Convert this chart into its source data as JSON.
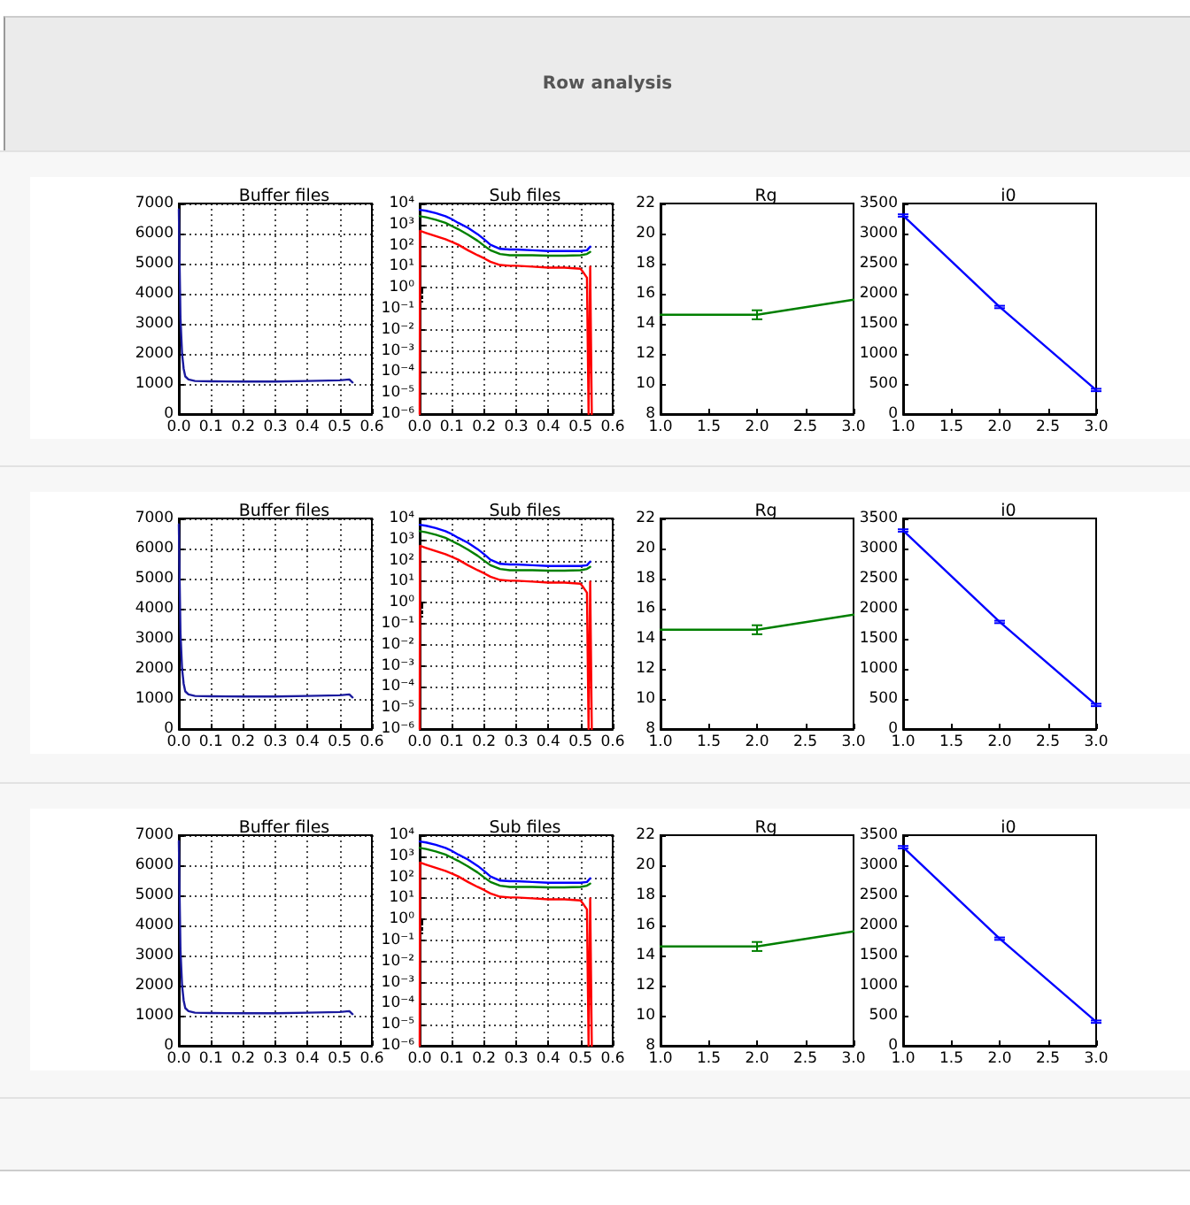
{
  "chart_data": [
    {
      "type": "line",
      "title": "Buffer files",
      "annotations": [
        "Row analysis"
      ],
      "x": [
        0,
        0.002,
        0.005,
        0.01,
        0.015,
        0.02,
        0.03,
        0.05,
        0.1,
        0.2,
        0.3,
        0.4,
        0.5,
        0.53,
        0.54
      ],
      "series": [
        {
          "color": "#1a1a9e",
          "values": [
            6800,
            5200,
            3200,
            2000,
            1500,
            1250,
            1150,
            1100,
            1090,
            1080,
            1080,
            1100,
            1120,
            1150,
            1050
          ]
        }
      ],
      "xlim": [
        0,
        0.6
      ],
      "xticks": [
        {
          "value": 0,
          "label": "0.0"
        },
        0.1,
        0.2,
        0.3,
        0.4,
        0.5,
        0.6
      ],
      "ylim": [
        0,
        7000
      ],
      "yticks": [
        0,
        1000,
        2000,
        3000,
        4000,
        5000,
        6000,
        7000
      ],
      "grid": true
    },
    {
      "type": "line",
      "title": "Sub files",
      "log": "y",
      "series": [
        {
          "color": "#0000ff",
          "x": [
            0,
            0.02,
            0.05,
            0.08,
            0.1,
            0.12,
            0.15,
            0.18,
            0.2,
            0.22,
            0.25,
            0.28,
            0.3,
            0.35,
            0.4,
            0.45,
            0.5,
            0.52,
            0.53
          ],
          "values": [
            5000,
            4500,
            3500,
            2500,
            1800,
            1200,
            700,
            350,
            200,
            110,
            70,
            65,
            65,
            60,
            55,
            55,
            55,
            60,
            90
          ]
        },
        {
          "color": "#008000",
          "x": [
            0,
            0.02,
            0.05,
            0.08,
            0.1,
            0.12,
            0.15,
            0.18,
            0.2,
            0.22,
            0.25,
            0.28,
            0.3,
            0.35,
            0.4,
            0.45,
            0.5,
            0.52,
            0.53
          ],
          "values": [
            2500,
            2200,
            1700,
            1200,
            850,
            600,
            330,
            170,
            100,
            60,
            40,
            35,
            35,
            35,
            33,
            33,
            35,
            40,
            50
          ]
        },
        {
          "color": "#ff0000",
          "x": [
            0,
            0.001,
            0.02,
            0.05,
            0.08,
            0.1,
            0.12,
            0.15,
            0.18,
            0.2,
            0.22,
            0.25,
            0.28,
            0.3,
            0.35,
            0.4,
            0.45,
            0.5,
            0.51,
            0.52,
            0.525,
            0.53,
            0.535
          ],
          "values": [
            1e-06,
            500,
            400,
            280,
            200,
            150,
            110,
            60,
            35,
            25,
            17,
            12,
            11,
            11,
            10,
            9,
            9,
            8,
            5,
            3,
            1e-06,
            10,
            1e-06
          ]
        }
      ],
      "xlim": [
        0,
        0.6
      ],
      "xticks": [
        {
          "value": 0,
          "label": "0.0"
        },
        0.1,
        0.2,
        0.3,
        0.4,
        0.5,
        0.6
      ],
      "ylim": [
        1e-06,
        10000
      ],
      "yticks": [
        {
          "value": 1e-06,
          "label": "10⁻⁶"
        },
        {
          "value": 1e-05,
          "label": "10⁻⁵"
        },
        {
          "value": 0.0001,
          "label": "10⁻⁴"
        },
        {
          "value": 0.001,
          "label": "10⁻³"
        },
        {
          "value": 0.01,
          "label": "10⁻²"
        },
        {
          "value": 0.1,
          "label": "10⁻¹"
        },
        {
          "value": 1,
          "label": "10⁰"
        },
        {
          "value": 10,
          "label": "10¹"
        },
        {
          "value": 100,
          "label": "10²"
        },
        {
          "value": 1000,
          "label": "10³"
        },
        {
          "value": 10000,
          "label": "10⁴"
        }
      ],
      "grid": true
    },
    {
      "type": "line",
      "title": "Rg",
      "x": [
        1,
        2,
        3
      ],
      "series": [
        {
          "color": "#007f00",
          "values": [
            14.6,
            14.6,
            15.6
          ],
          "errors": [
            null,
            0.3,
            null
          ]
        }
      ],
      "xlim": [
        1,
        3
      ],
      "xticks": [
        {
          "value": 1,
          "label": "1.0"
        },
        1.5,
        {
          "value": 2,
          "label": "2.0"
        },
        2.5,
        {
          "value": 3,
          "label": "3.0"
        }
      ],
      "ylim": [
        8,
        22
      ],
      "yticks": [
        8,
        10,
        12,
        14,
        16,
        18,
        20,
        22
      ]
    },
    {
      "type": "line",
      "title": "i0",
      "x": [
        1,
        2,
        3
      ],
      "series": [
        {
          "color": "#0000ff",
          "values": [
            3300,
            1780,
            400
          ],
          "errors": [
            20,
            20,
            20
          ]
        }
      ],
      "xlim": [
        1,
        3
      ],
      "xticks": [
        {
          "value": 1,
          "label": "1.0"
        },
        1.5,
        {
          "value": 2,
          "label": "2.0"
        },
        2.5,
        {
          "value": 3,
          "label": "3.0"
        }
      ],
      "ylim": [
        0,
        3500
      ],
      "yticks": [
        0,
        500,
        1000,
        1500,
        2000,
        2500,
        3000,
        3500
      ]
    },
    {
      "type": "line",
      "title": "Buffer files",
      "x": [
        0,
        0.002,
        0.005,
        0.01,
        0.015,
        0.02,
        0.03,
        0.05,
        0.1,
        0.2,
        0.3,
        0.4,
        0.5,
        0.53,
        0.54
      ],
      "series": [
        {
          "color": "#1a1a9e",
          "values": [
            6800,
            5200,
            3200,
            2000,
            1500,
            1250,
            1150,
            1100,
            1090,
            1080,
            1080,
            1100,
            1120,
            1150,
            1050
          ]
        }
      ],
      "xlim": [
        0,
        0.6
      ],
      "xticks": [
        {
          "value": 0,
          "label": "0.0"
        },
        0.1,
        0.2,
        0.3,
        0.4,
        0.5,
        0.6
      ],
      "ylim": [
        0,
        7000
      ],
      "yticks": [
        0,
        1000,
        2000,
        3000,
        4000,
        5000,
        6000,
        7000
      ],
      "grid": true
    },
    {
      "type": "line",
      "title": "Sub files",
      "log": "y",
      "series": [
        {
          "color": "#0000ff",
          "x": [
            0,
            0.02,
            0.05,
            0.08,
            0.1,
            0.12,
            0.15,
            0.18,
            0.2,
            0.22,
            0.25,
            0.28,
            0.3,
            0.35,
            0.4,
            0.45,
            0.5,
            0.52,
            0.53
          ],
          "values": [
            5000,
            4500,
            3500,
            2500,
            1800,
            1200,
            700,
            350,
            200,
            110,
            70,
            65,
            65,
            60,
            55,
            55,
            55,
            60,
            90
          ]
        },
        {
          "color": "#008000",
          "x": [
            0,
            0.02,
            0.05,
            0.08,
            0.1,
            0.12,
            0.15,
            0.18,
            0.2,
            0.22,
            0.25,
            0.28,
            0.3,
            0.35,
            0.4,
            0.45,
            0.5,
            0.52,
            0.53
          ],
          "values": [
            2500,
            2200,
            1700,
            1200,
            850,
            600,
            330,
            170,
            100,
            60,
            40,
            35,
            35,
            35,
            33,
            33,
            35,
            40,
            50
          ]
        },
        {
          "color": "#ff0000",
          "x": [
            0,
            0.001,
            0.02,
            0.05,
            0.08,
            0.1,
            0.12,
            0.15,
            0.18,
            0.2,
            0.22,
            0.25,
            0.28,
            0.3,
            0.35,
            0.4,
            0.45,
            0.5,
            0.51,
            0.52,
            0.525,
            0.53,
            0.535
          ],
          "values": [
            1e-06,
            500,
            400,
            280,
            200,
            150,
            110,
            60,
            35,
            25,
            17,
            12,
            11,
            11,
            10,
            9,
            9,
            8,
            5,
            3,
            1e-06,
            10,
            1e-06
          ]
        }
      ],
      "xlim": [
        0,
        0.6
      ],
      "xticks": [
        {
          "value": 0,
          "label": "0.0"
        },
        0.1,
        0.2,
        0.3,
        0.4,
        0.5,
        0.6
      ],
      "ylim": [
        1e-06,
        10000
      ],
      "yticks": [
        {
          "value": 1e-06,
          "label": "10⁻⁶"
        },
        {
          "value": 1e-05,
          "label": "10⁻⁵"
        },
        {
          "value": 0.0001,
          "label": "10⁻⁴"
        },
        {
          "value": 0.001,
          "label": "10⁻³"
        },
        {
          "value": 0.01,
          "label": "10⁻²"
        },
        {
          "value": 0.1,
          "label": "10⁻¹"
        },
        {
          "value": 1,
          "label": "10⁰"
        },
        {
          "value": 10,
          "label": "10¹"
        },
        {
          "value": 100,
          "label": "10²"
        },
        {
          "value": 1000,
          "label": "10³"
        },
        {
          "value": 10000,
          "label": "10⁴"
        }
      ],
      "grid": true
    },
    {
      "type": "line",
      "title": "Rg",
      "x": [
        1,
        2,
        3
      ],
      "series": [
        {
          "color": "#007f00",
          "values": [
            14.6,
            14.6,
            15.6
          ],
          "errors": [
            null,
            0.3,
            null
          ]
        }
      ],
      "xlim": [
        1,
        3
      ],
      "xticks": [
        {
          "value": 1,
          "label": "1.0"
        },
        1.5,
        {
          "value": 2,
          "label": "2.0"
        },
        2.5,
        {
          "value": 3,
          "label": "3.0"
        }
      ],
      "ylim": [
        8,
        22
      ],
      "yticks": [
        8,
        10,
        12,
        14,
        16,
        18,
        20,
        22
      ]
    },
    {
      "type": "line",
      "title": "i0",
      "x": [
        1,
        2,
        3
      ],
      "series": [
        {
          "color": "#0000ff",
          "values": [
            3300,
            1780,
            400
          ],
          "errors": [
            20,
            20,
            20
          ]
        }
      ],
      "xlim": [
        1,
        3
      ],
      "xticks": [
        {
          "value": 1,
          "label": "1.0"
        },
        1.5,
        {
          "value": 2,
          "label": "2.0"
        },
        2.5,
        {
          "value": 3,
          "label": "3.0"
        }
      ],
      "ylim": [
        0,
        3500
      ],
      "yticks": [
        0,
        500,
        1000,
        1500,
        2000,
        2500,
        3000,
        3500
      ]
    },
    {
      "type": "line",
      "title": "Buffer files",
      "x": [
        0,
        0.002,
        0.005,
        0.01,
        0.015,
        0.02,
        0.03,
        0.05,
        0.1,
        0.2,
        0.3,
        0.4,
        0.5,
        0.53,
        0.54
      ],
      "series": [
        {
          "color": "#1a1a9e",
          "values": [
            6800,
            5200,
            3200,
            2000,
            1500,
            1250,
            1150,
            1100,
            1090,
            1080,
            1080,
            1100,
            1120,
            1150,
            1050
          ]
        }
      ],
      "xlim": [
        0,
        0.6
      ],
      "xticks": [
        {
          "value": 0,
          "label": "0.0"
        },
        0.1,
        0.2,
        0.3,
        0.4,
        0.5,
        0.6
      ],
      "ylim": [
        0,
        7000
      ],
      "yticks": [
        0,
        1000,
        2000,
        3000,
        4000,
        5000,
        6000,
        7000
      ],
      "grid": true
    },
    {
      "type": "line",
      "title": "Sub files",
      "log": "y",
      "series": [
        {
          "color": "#0000ff",
          "x": [
            0,
            0.02,
            0.05,
            0.08,
            0.1,
            0.12,
            0.15,
            0.18,
            0.2,
            0.22,
            0.25,
            0.28,
            0.3,
            0.35,
            0.4,
            0.45,
            0.5,
            0.52,
            0.53
          ],
          "values": [
            5000,
            4500,
            3500,
            2500,
            1800,
            1200,
            700,
            350,
            200,
            110,
            70,
            65,
            65,
            60,
            55,
            55,
            55,
            60,
            90
          ]
        },
        {
          "color": "#008000",
          "x": [
            0,
            0.02,
            0.05,
            0.08,
            0.1,
            0.12,
            0.15,
            0.18,
            0.2,
            0.22,
            0.25,
            0.28,
            0.3,
            0.35,
            0.4,
            0.45,
            0.5,
            0.52,
            0.53
          ],
          "values": [
            2500,
            2200,
            1700,
            1200,
            850,
            600,
            330,
            170,
            100,
            60,
            40,
            35,
            35,
            35,
            33,
            33,
            35,
            40,
            50
          ]
        },
        {
          "color": "#ff0000",
          "x": [
            0,
            0.001,
            0.02,
            0.05,
            0.08,
            0.1,
            0.12,
            0.15,
            0.18,
            0.2,
            0.22,
            0.25,
            0.28,
            0.3,
            0.35,
            0.4,
            0.45,
            0.5,
            0.51,
            0.52,
            0.525,
            0.53,
            0.535
          ],
          "values": [
            1e-06,
            500,
            400,
            280,
            200,
            150,
            110,
            60,
            35,
            25,
            17,
            12,
            11,
            11,
            10,
            9,
            9,
            8,
            5,
            3,
            1e-06,
            10,
            1e-06
          ]
        }
      ],
      "xlim": [
        0,
        0.6
      ],
      "xticks": [
        {
          "value": 0,
          "label": "0.0"
        },
        0.1,
        0.2,
        0.3,
        0.4,
        0.5,
        0.6
      ],
      "ylim": [
        1e-06,
        10000
      ],
      "yticks": [
        {
          "value": 1e-06,
          "label": "10⁻⁶"
        },
        {
          "value": 1e-05,
          "label": "10⁻⁵"
        },
        {
          "value": 0.0001,
          "label": "10⁻⁴"
        },
        {
          "value": 0.001,
          "label": "10⁻³"
        },
        {
          "value": 0.01,
          "label": "10⁻²"
        },
        {
          "value": 0.1,
          "label": "10⁻¹"
        },
        {
          "value": 1,
          "label": "10⁰"
        },
        {
          "value": 10,
          "label": "10¹"
        },
        {
          "value": 100,
          "label": "10²"
        },
        {
          "value": 1000,
          "label": "10³"
        },
        {
          "value": 10000,
          "label": "10⁴"
        }
      ],
      "grid": true
    },
    {
      "type": "line",
      "title": "Rg",
      "x": [
        1,
        2,
        3
      ],
      "series": [
        {
          "color": "#007f00",
          "values": [
            14.6,
            14.6,
            15.6
          ],
          "errors": [
            null,
            0.3,
            null
          ]
        }
      ],
      "xlim": [
        1,
        3
      ],
      "xticks": [
        {
          "value": 1,
          "label": "1.0"
        },
        1.5,
        {
          "value": 2,
          "label": "2.0"
        },
        2.5,
        {
          "value": 3,
          "label": "3.0"
        }
      ],
      "ylim": [
        8,
        22
      ],
      "yticks": [
        8,
        10,
        12,
        14,
        16,
        18,
        20,
        22
      ]
    },
    {
      "type": "line",
      "title": "i0",
      "x": [
        1,
        2,
        3
      ],
      "series": [
        {
          "color": "#0000ff",
          "values": [
            3300,
            1780,
            400
          ],
          "errors": [
            20,
            20,
            20
          ]
        }
      ],
      "xlim": [
        1,
        3
      ],
      "xticks": [
        {
          "value": 1,
          "label": "1.0"
        },
        1.5,
        {
          "value": 2,
          "label": "2.0"
        },
        2.5,
        {
          "value": 3,
          "label": "3.0"
        }
      ],
      "ylim": [
        0,
        3500
      ],
      "yticks": [
        0,
        500,
        1000,
        1500,
        2000,
        2500,
        3000,
        3500
      ]
    }
  ]
}
